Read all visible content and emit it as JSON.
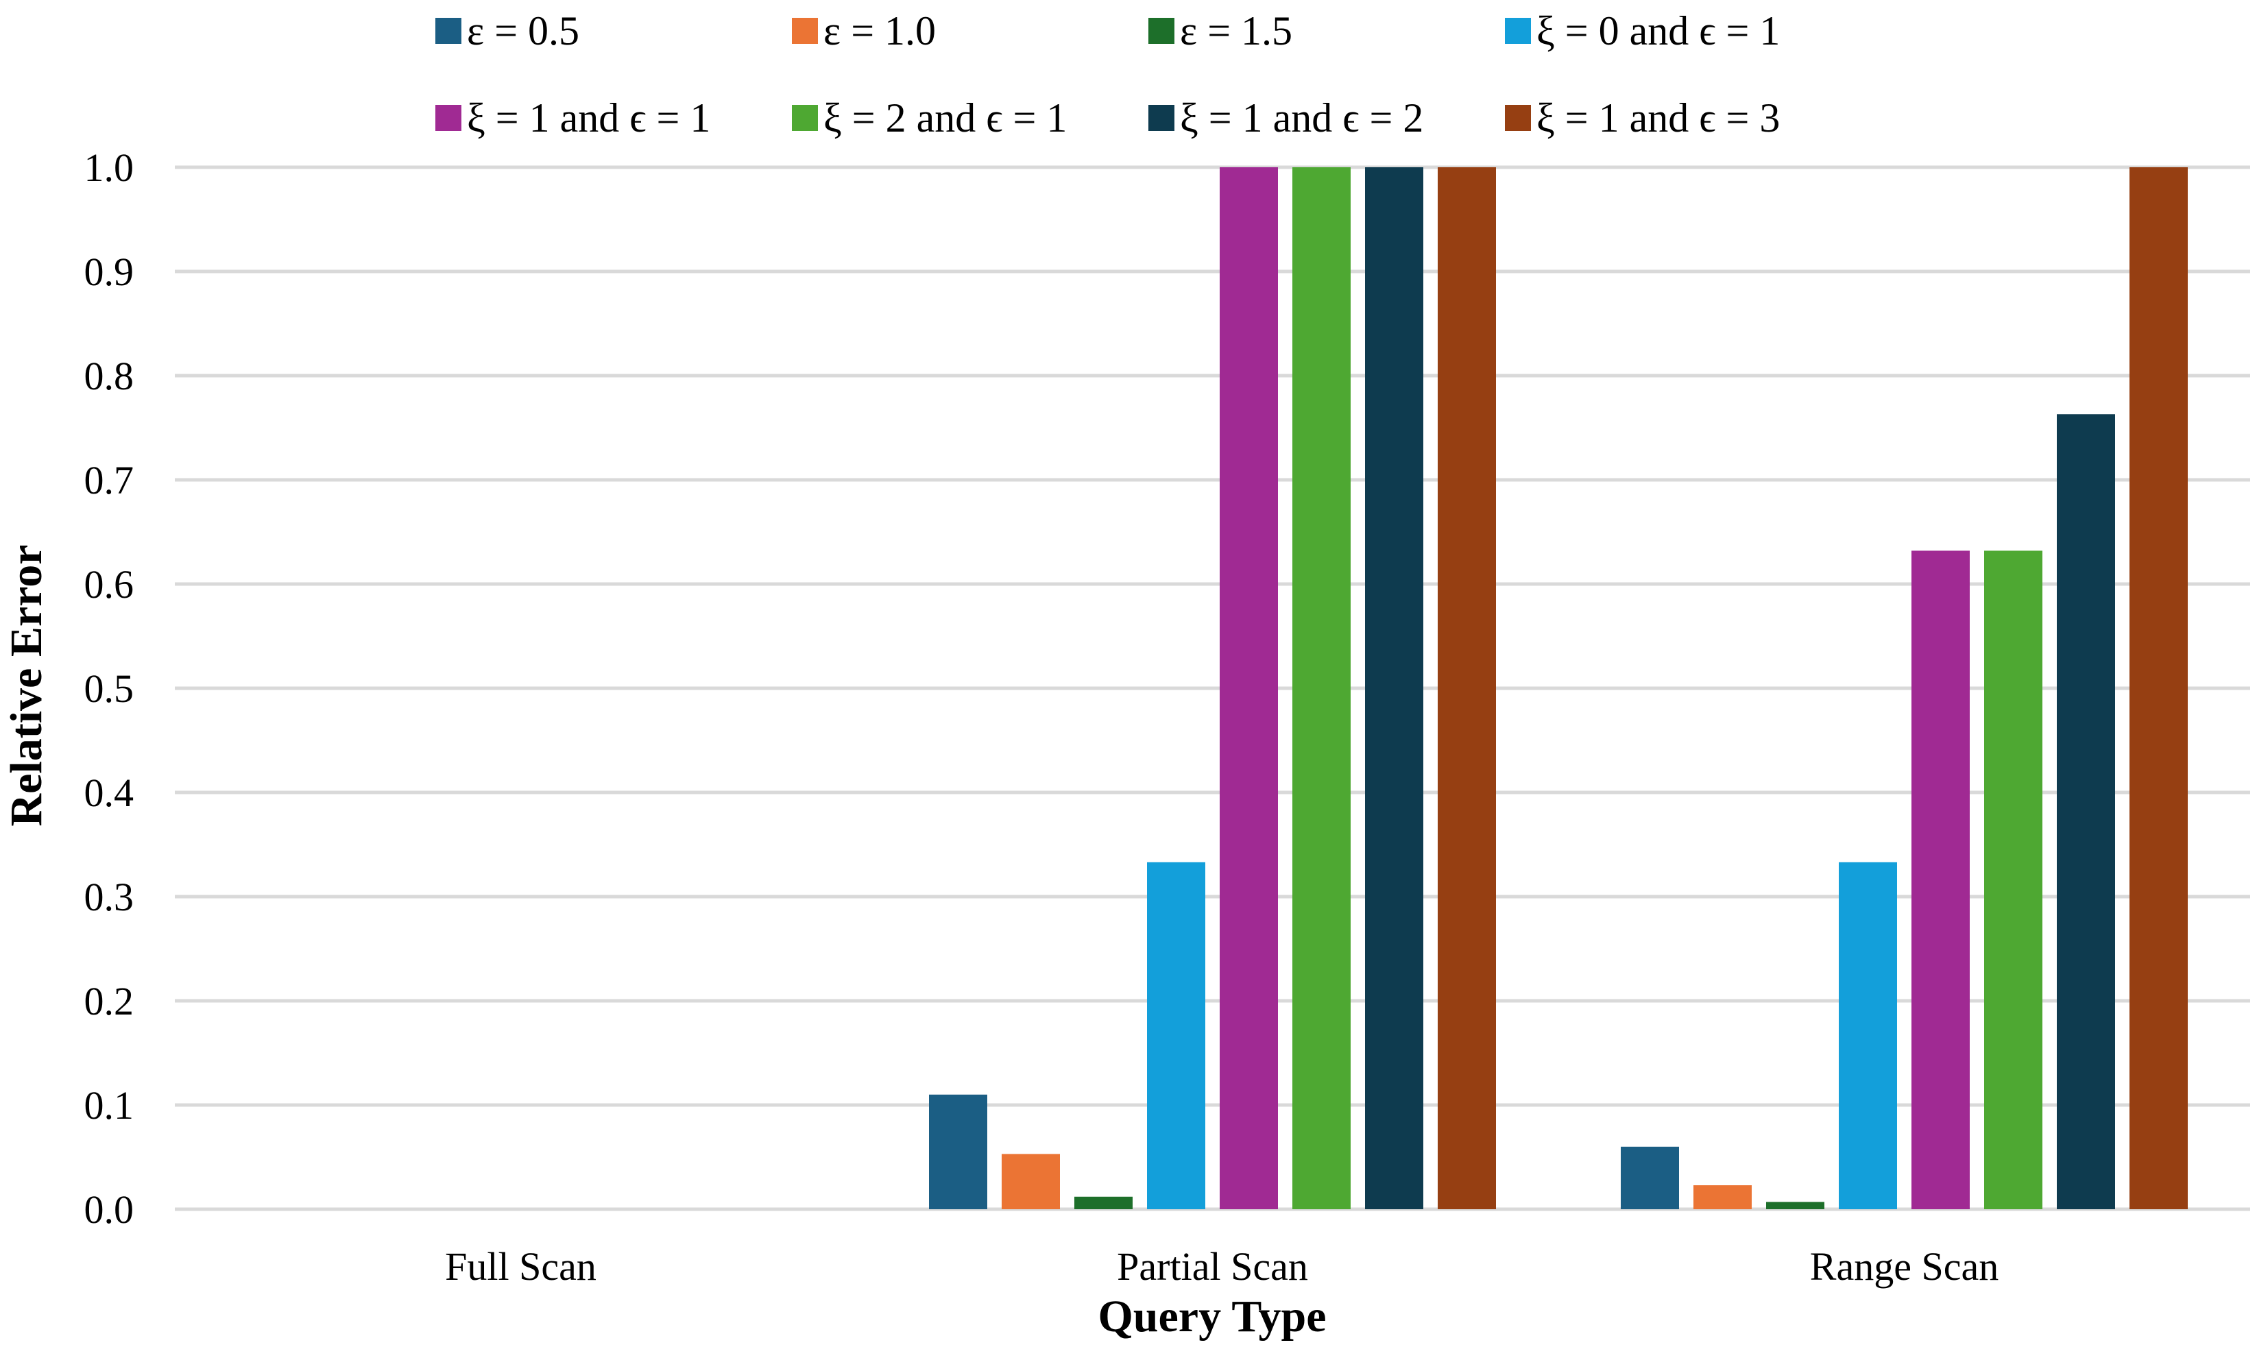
{
  "chart_data": {
    "type": "bar",
    "xlabel": "Query Type",
    "ylabel": "Relative Error",
    "ylim": [
      0,
      1.0
    ],
    "yticks": [
      "0.0",
      "0.1",
      "0.2",
      "0.3",
      "0.4",
      "0.5",
      "0.6",
      "0.7",
      "0.8",
      "0.9",
      "1.0"
    ],
    "categories": [
      "Full Scan",
      "Partial Scan",
      "Range Scan"
    ],
    "grid": "horizontal",
    "legend_position": "top",
    "series": [
      {
        "name": "ε = 0.5",
        "color": "#1b5e84",
        "values": [
          0,
          0.11,
          0.06
        ]
      },
      {
        "name": "ε = 1.0",
        "color": "#eb7434",
        "values": [
          0,
          0.053,
          0.023
        ]
      },
      {
        "name": "ε = 1.5",
        "color": "#1d6f2a",
        "values": [
          0,
          0.012,
          0.007
        ]
      },
      {
        "name": "ξ = 0 and ϵ = 1",
        "color": "#139fda",
        "values": [
          0,
          0.333,
          0.333
        ]
      },
      {
        "name": "ξ = 1 and ϵ = 1",
        "color": "#a02a93",
        "values": [
          0,
          1.0,
          0.632
        ]
      },
      {
        "name": "ξ = 2 and ϵ = 1",
        "color": "#4ea832",
        "values": [
          0,
          1.0,
          0.632
        ]
      },
      {
        "name": "ξ = 1 and ϵ = 2",
        "color": "#0e3b4f",
        "values": [
          0,
          1.0,
          0.763
        ]
      },
      {
        "name": "ξ = 1 and ϵ = 3",
        "color": "#963f12",
        "values": [
          0,
          1.0,
          1.0
        ]
      }
    ]
  }
}
